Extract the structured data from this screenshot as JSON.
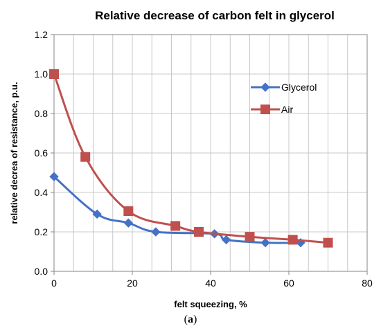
{
  "caption": {
    "open": "(",
    "letter": "a",
    "close": ")"
  },
  "chart_data": {
    "type": "line",
    "title": "Relative decrease of carbon  felt in glycerol",
    "xlabel": "felt squeezing, %",
    "ylabel": "relative decrea of resistance, p.u.",
    "xlim": [
      0,
      80
    ],
    "ylim": [
      0,
      1.2
    ],
    "xticks": [
      "0",
      "20",
      "40",
      "60",
      "80"
    ],
    "yticks": [
      "0.0",
      "0.2",
      "0.4",
      "0.6",
      "0.8",
      "1.0",
      "1.2"
    ],
    "grid": true,
    "legend_position": "right",
    "smooth": true,
    "series": [
      {
        "name": "Glycerol",
        "color": "#4472C4",
        "marker": "diamond",
        "x": [
          0,
          11,
          19,
          26,
          41,
          44,
          54,
          63
        ],
        "y": [
          0.48,
          0.29,
          0.245,
          0.2,
          0.19,
          0.16,
          0.145,
          0.145
        ]
      },
      {
        "name": "Air",
        "color": "#C0504D",
        "marker": "square",
        "x": [
          0,
          8,
          19,
          31,
          37,
          50,
          61,
          70
        ],
        "y": [
          1.0,
          0.58,
          0.305,
          0.23,
          0.2,
          0.175,
          0.16,
          0.145
        ]
      }
    ]
  }
}
